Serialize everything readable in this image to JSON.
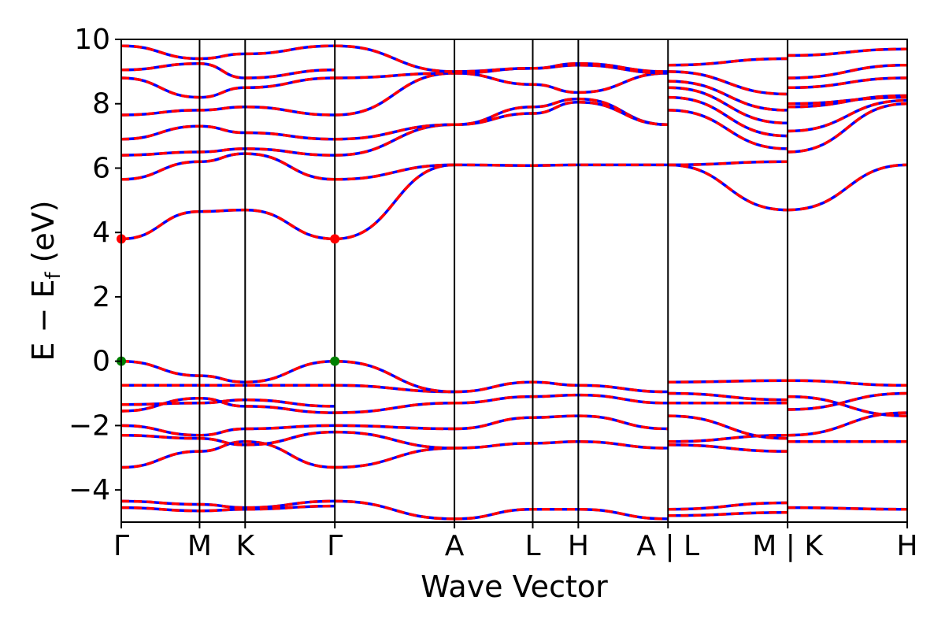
{
  "chart_data": {
    "type": "line",
    "title": "",
    "xlabel": "Wave Vector",
    "ylabel_parts": {
      "main": "E − E",
      "sub": "f",
      "tail": " (eV)"
    },
    "ylim": [
      -5,
      10
    ],
    "yticks": [
      10,
      8,
      6,
      4,
      2,
      0,
      -2,
      -4
    ],
    "ytick_labels": [
      "10",
      "8",
      "6",
      "4",
      "2",
      "0",
      "−2",
      "−4"
    ],
    "kpoints": [
      {
        "label": "Γ",
        "x": 0.0
      },
      {
        "label": "M",
        "x": 0.55
      },
      {
        "label": "K",
        "x": 0.87
      },
      {
        "label": "Γ",
        "x": 1.5
      },
      {
        "label": "A",
        "x": 2.34
      },
      {
        "label": "L",
        "x": 2.89
      },
      {
        "label": "H",
        "x": 3.21
      },
      {
        "label": "A | L",
        "x": 3.84
      },
      {
        "label": "M | K",
        "x": 4.68
      },
      {
        "label": "H",
        "x": 5.52
      }
    ],
    "xlim": [
      0,
      5.52
    ],
    "colors": {
      "band_primary": "#ff0000",
      "band_secondary": "#0000ff",
      "vbm": "#008000",
      "cbm": "#ff0000",
      "kline": "#000000"
    },
    "segments": [
      {
        "x": [
          0.0,
          0.55,
          0.87,
          1.5
        ],
        "bands": [
          [
            -4.55,
            -4.65,
            -4.6,
            -4.5
          ],
          [
            -4.35,
            -4.45,
            -4.55,
            -4.35
          ],
          [
            -3.3,
            -2.8,
            -2.5,
            -3.3
          ],
          [
            -2.3,
            -2.4,
            -2.6,
            -2.2
          ],
          [
            -2.0,
            -2.3,
            -2.1,
            -2.0
          ],
          [
            -1.55,
            -1.15,
            -1.4,
            -1.6
          ],
          [
            -1.35,
            -1.3,
            -1.2,
            -1.4
          ],
          [
            -0.75,
            -0.75,
            -0.75,
            -0.75
          ],
          [
            0.0,
            -0.45,
            -0.65,
            0.0
          ],
          [
            3.8,
            4.65,
            4.7,
            3.8
          ],
          [
            5.65,
            6.2,
            6.45,
            5.65
          ],
          [
            6.4,
            6.5,
            6.6,
            6.4
          ],
          [
            6.9,
            7.3,
            7.1,
            6.9
          ],
          [
            7.65,
            7.8,
            7.9,
            7.65
          ],
          [
            8.8,
            8.2,
            8.5,
            8.8
          ],
          [
            9.05,
            9.25,
            8.8,
            9.05
          ],
          [
            9.8,
            9.4,
            9.55,
            9.8
          ]
        ]
      },
      {
        "x": [
          1.5,
          2.34
        ],
        "bands": [
          [
            -4.35,
            -4.9
          ],
          [
            -3.3,
            -2.7
          ],
          [
            -2.2,
            -2.7
          ],
          [
            -2.0,
            -2.1
          ],
          [
            -1.6,
            -1.3
          ],
          [
            -0.75,
            -0.95
          ],
          [
            0.0,
            -0.95
          ],
          [
            3.8,
            6.1
          ],
          [
            5.65,
            6.1
          ],
          [
            6.4,
            7.35
          ],
          [
            6.9,
            7.35
          ],
          [
            7.65,
            8.95
          ],
          [
            8.8,
            8.95
          ],
          [
            9.8,
            9.0
          ]
        ]
      },
      {
        "x": [
          2.34,
          2.89,
          3.21,
          3.84
        ],
        "bands": [
          [
            -4.9,
            -4.6,
            -4.6,
            -4.9
          ],
          [
            -2.7,
            -2.55,
            -2.5,
            -2.7
          ],
          [
            -2.1,
            -1.75,
            -1.7,
            -2.1
          ],
          [
            -1.3,
            -1.1,
            -1.05,
            -1.3
          ],
          [
            -0.95,
            -0.65,
            -0.75,
            -0.95
          ],
          [
            6.1,
            6.08,
            6.1,
            6.1
          ],
          [
            7.35,
            7.9,
            8.15,
            7.35
          ],
          [
            7.35,
            7.7,
            8.05,
            7.35
          ],
          [
            8.95,
            8.6,
            8.35,
            8.95
          ],
          [
            8.95,
            9.1,
            9.2,
            8.95
          ],
          [
            9.0,
            9.1,
            9.25,
            9.0
          ]
        ]
      },
      {
        "x": [
          3.84,
          4.68
        ],
        "bands": [
          [
            -4.6,
            -4.4
          ],
          [
            -4.8,
            -4.7
          ],
          [
            -2.6,
            -2.8
          ],
          [
            -2.5,
            -2.3
          ],
          [
            -1.7,
            -2.4
          ],
          [
            -1.3,
            -1.3
          ],
          [
            -1.0,
            -1.2
          ],
          [
            -0.65,
            -0.6
          ],
          [
            6.1,
            4.7
          ],
          [
            6.1,
            6.2
          ],
          [
            7.8,
            6.6
          ],
          [
            8.2,
            7.0
          ],
          [
            8.5,
            7.4
          ],
          [
            8.7,
            7.8
          ],
          [
            9.0,
            8.3
          ],
          [
            9.2,
            9.4
          ]
        ]
      },
      {
        "x": [
          4.68,
          5.52
        ],
        "bands": [
          [
            -4.55,
            -4.6
          ],
          [
            -2.5,
            -2.5
          ],
          [
            -2.3,
            -1.6
          ],
          [
            -1.5,
            -1.0
          ],
          [
            -1.1,
            -1.7
          ],
          [
            -0.6,
            -0.75
          ],
          [
            4.7,
            6.1
          ],
          [
            6.5,
            8.0
          ],
          [
            7.15,
            8.1
          ],
          [
            7.9,
            8.25
          ],
          [
            8.0,
            8.2
          ],
          [
            8.5,
            8.8
          ],
          [
            8.8,
            9.2
          ],
          [
            9.5,
            9.7
          ]
        ]
      }
    ],
    "markers": [
      {
        "kind": "vbm",
        "x": 0.0,
        "y": 0.0
      },
      {
        "kind": "vbm",
        "x": 1.5,
        "y": 0.0
      },
      {
        "kind": "cbm",
        "x": 0.0,
        "y": 3.8
      },
      {
        "kind": "cbm",
        "x": 1.5,
        "y": 3.8
      }
    ]
  }
}
